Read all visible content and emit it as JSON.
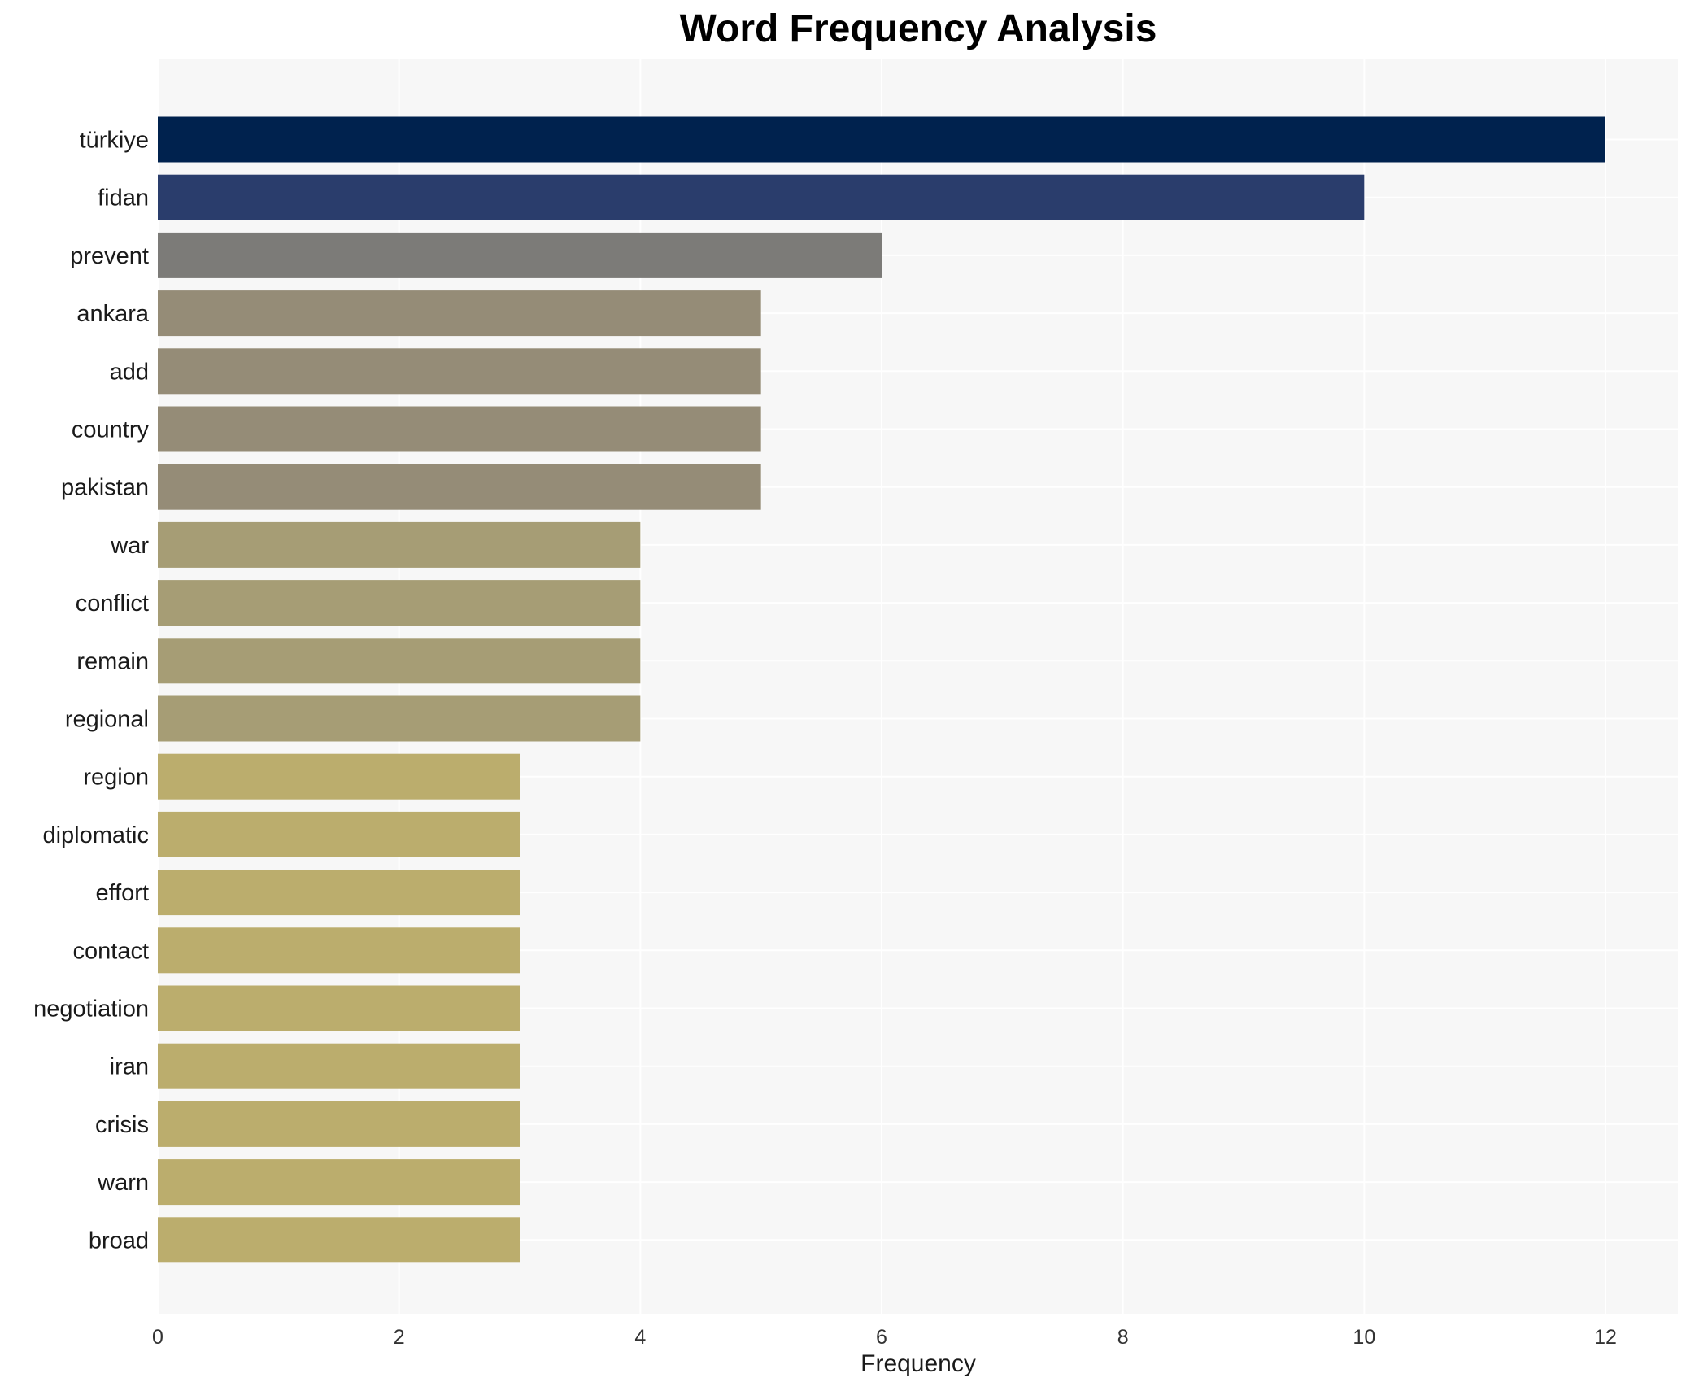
{
  "chart_data": {
    "type": "bar",
    "orientation": "horizontal",
    "title": "Word Frequency Analysis",
    "xlabel": "Frequency",
    "ylabel": "",
    "xlim": [
      0,
      12.6
    ],
    "xticks": [
      0,
      2,
      4,
      6,
      8,
      10,
      12
    ],
    "grid": true,
    "categories": [
      "türkiye",
      "fidan",
      "prevent",
      "ankara",
      "add",
      "country",
      "pakistan",
      "war",
      "conflict",
      "remain",
      "regional",
      "region",
      "diplomatic",
      "effort",
      "contact",
      "negotiation",
      "iran",
      "crisis",
      "warn",
      "broad"
    ],
    "values": [
      12,
      10,
      6,
      5,
      5,
      5,
      5,
      4,
      4,
      4,
      4,
      3,
      3,
      3,
      3,
      3,
      3,
      3,
      3,
      3
    ],
    "colors": [
      "#00224e",
      "#2a3d6c",
      "#7c7b78",
      "#958c77",
      "#958c77",
      "#958c77",
      "#958c77",
      "#a69d75",
      "#a69d75",
      "#a69d75",
      "#a69d75",
      "#bbad6d",
      "#bbad6d",
      "#bbad6d",
      "#bbad6d",
      "#bbad6d",
      "#bbad6d",
      "#bbad6d",
      "#bbad6d",
      "#bbad6d"
    ],
    "background": "#f7f7f7"
  }
}
